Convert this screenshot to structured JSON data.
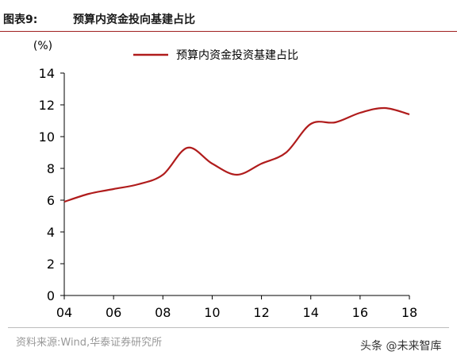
{
  "header": {
    "figure_label": "图表9:",
    "figure_title": "预算内资金投向基建占比"
  },
  "chart_data": {
    "type": "line",
    "unit_label": "(%)",
    "x_ticks": [
      "04",
      "06",
      "08",
      "10",
      "12",
      "14",
      "16",
      "18"
    ],
    "y_ticks": [
      "0",
      "2",
      "4",
      "6",
      "8",
      "10",
      "12",
      "14"
    ],
    "xlim": [
      2004,
      2018
    ],
    "ylim": [
      0,
      14
    ],
    "grid": false,
    "legend_position": "top-center",
    "series": [
      {
        "name": "预算内资金投资基建占比",
        "color": "#b01c1c",
        "x": [
          2004,
          2005,
          2006,
          2007,
          2008,
          2009,
          2010,
          2011,
          2012,
          2013,
          2014,
          2015,
          2016,
          2017,
          2018
        ],
        "y": [
          5.9,
          6.4,
          6.7,
          7.0,
          7.6,
          9.3,
          8.3,
          7.6,
          8.3,
          9.0,
          10.8,
          10.9,
          11.5,
          11.8,
          11.4
        ]
      }
    ]
  },
  "footer": {
    "source": "资料来源:Wind,华泰证券研究所",
    "watermark": "头条 @未来智库"
  }
}
